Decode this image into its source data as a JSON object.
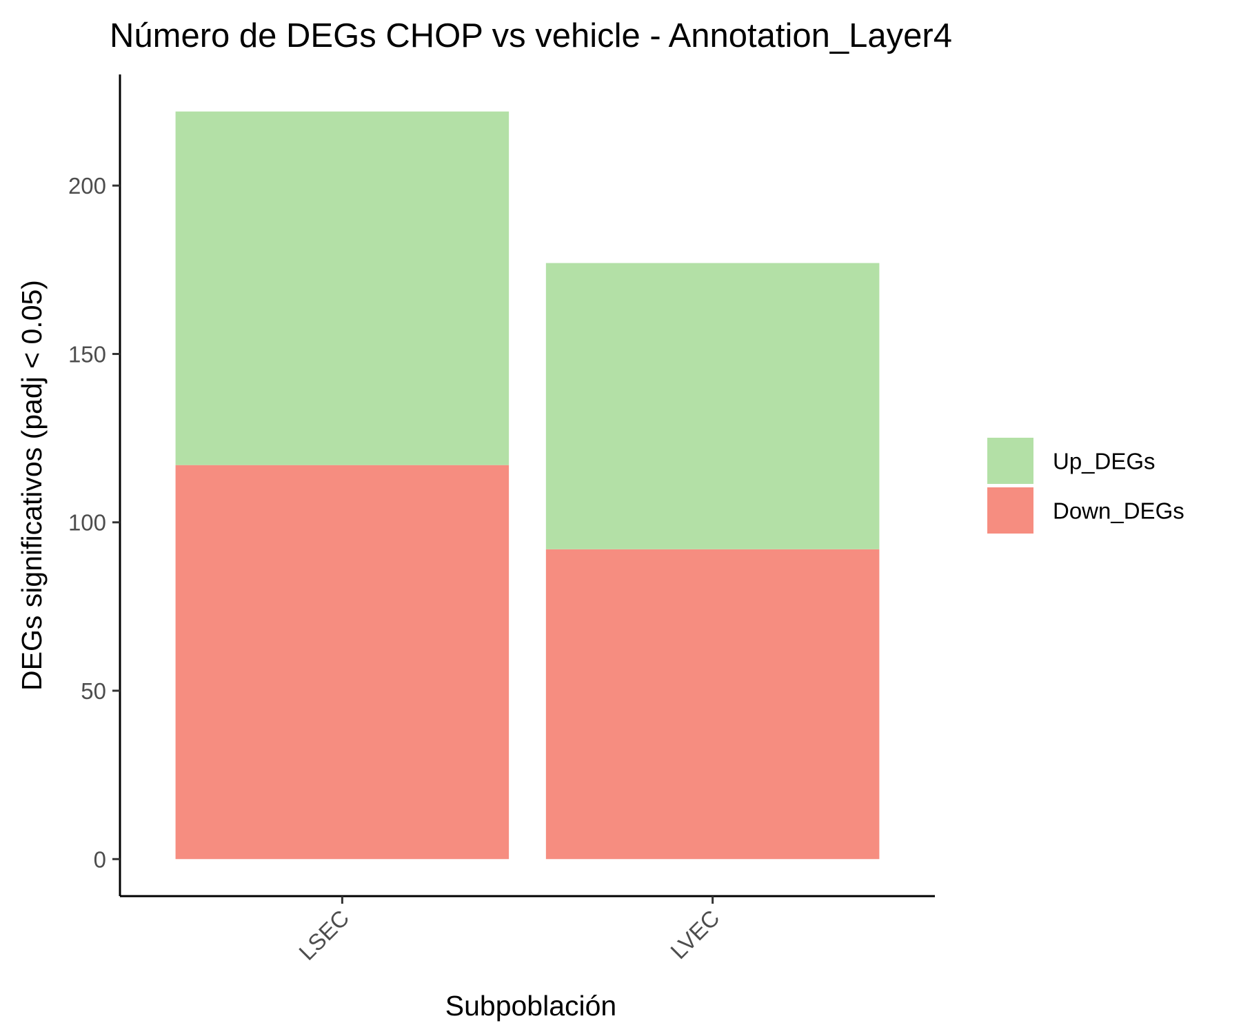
{
  "chart_data": {
    "type": "bar",
    "stacked": true,
    "title": "Número de DEGs CHOP vs vehicle - Annotation_Layer4",
    "xlabel": "Subpoblación",
    "ylabel": "DEGs significativos (padj < 0.05)",
    "categories": [
      "LSEC",
      "LVEC"
    ],
    "series": [
      {
        "name": "Down_DEGs",
        "values": [
          117,
          92
        ],
        "color": "#f68d80"
      },
      {
        "name": "Up_DEGs",
        "values": [
          105,
          85
        ],
        "color": "#b3e0a6"
      }
    ],
    "ylim": [
      -11,
      233
    ],
    "yticks": [
      0,
      50,
      100,
      150,
      200
    ],
    "grid": false,
    "legend": {
      "position": "right",
      "order": [
        "Up_DEGs",
        "Down_DEGs"
      ]
    }
  }
}
